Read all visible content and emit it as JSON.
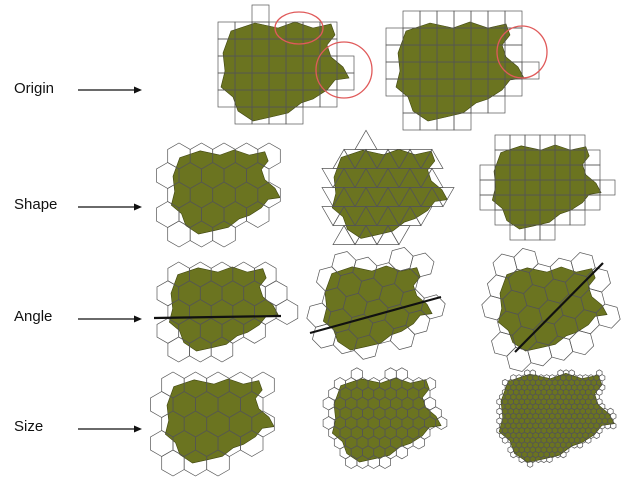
{
  "rows": [
    {
      "id": "origin",
      "label": "Origin"
    },
    {
      "id": "shape",
      "label": "Shape"
    },
    {
      "id": "angle",
      "label": "Angle"
    },
    {
      "id": "size",
      "label": "Size"
    }
  ],
  "colors": {
    "region_fill": "#6b7420",
    "region_stroke": "#3e4410",
    "grid_stroke": "#555555",
    "highlight_circle": "#e05a5a",
    "angle_line": "#111111",
    "arrow": "#111111"
  },
  "panels": {
    "origin": [
      {
        "tessellation": "square",
        "highlights": 2
      },
      {
        "tessellation": "square",
        "highlights": 1
      }
    ],
    "shape": [
      {
        "tessellation": "hexagon"
      },
      {
        "tessellation": "triangle"
      },
      {
        "tessellation": "square"
      }
    ],
    "angle": [
      {
        "tessellation": "hexagon",
        "rotation_deg": 0
      },
      {
        "tessellation": "hexagon",
        "rotation_deg": 15
      },
      {
        "tessellation": "hexagon",
        "rotation_deg": 45
      }
    ],
    "size": [
      {
        "tessellation": "hexagon",
        "cell_size": "large"
      },
      {
        "tessellation": "hexagon",
        "cell_size": "medium"
      },
      {
        "tessellation": "hexagon",
        "cell_size": "small"
      }
    ]
  }
}
